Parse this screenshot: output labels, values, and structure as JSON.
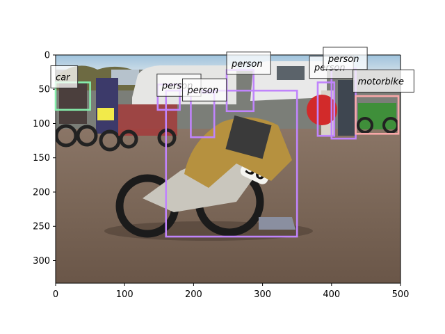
{
  "figure": {
    "x_ticks": [
      "0",
      "100",
      "200",
      "300",
      "400",
      "500"
    ],
    "y_ticks": [
      "0",
      "50",
      "100",
      "150",
      "200",
      "250",
      "300"
    ]
  },
  "image": {
    "description_icon": "photo-dirt-track-motorcycle-race",
    "extent": {
      "x": [
        0,
        500
      ],
      "y": [
        0,
        333
      ]
    }
  },
  "detections": [
    {
      "id": "det-person-main",
      "label": "person",
      "color": "#c084fc",
      "x1": 160,
      "y1": 52,
      "x2": 350,
      "y2": 265
    },
    {
      "id": "det-person-center-top",
      "label": "person",
      "color": "#c084fc",
      "x1": 248,
      "y1": 22,
      "x2": 287,
      "y2": 82
    },
    {
      "id": "det-person-left-mid",
      "label": "person",
      "color": "#c084fc",
      "x1": 196,
      "y1": 55,
      "x2": 230,
      "y2": 120
    },
    {
      "id": "det-person-right-a",
      "label": "person",
      "color": "#c084fc",
      "x1": 380,
      "y1": 40,
      "x2": 404,
      "y2": 118
    },
    {
      "id": "det-person-right-b",
      "label": "person",
      "color": "#c084fc",
      "x1": 400,
      "y1": 20,
      "x2": 435,
      "y2": 122
    },
    {
      "id": "det-person-left",
      "label": "person",
      "color": "#c084fc",
      "x1": 148,
      "y1": 43,
      "x2": 180,
      "y2": 80
    },
    {
      "id": "det-motorbike",
      "label": "motorbike",
      "color": "#f9a8a8",
      "x1": 435,
      "y1": 60,
      "x2": 497,
      "y2": 115
    },
    {
      "id": "det-car",
      "label": "car",
      "color": "#86efac",
      "x1": 0,
      "y1": 40,
      "x2": 50,
      "y2": 80
    }
  ],
  "labels": [
    {
      "text": "person",
      "x": 248,
      "y": 14
    },
    {
      "text": "person",
      "x": 147,
      "y": 46
    },
    {
      "text": "person",
      "x": 184,
      "y": 53
    },
    {
      "text": "person",
      "x": 368,
      "y": 20
    },
    {
      "text": "person",
      "x": 388,
      "y": 7
    },
    {
      "text": "motorbike",
      "x": 431,
      "y": 40
    },
    {
      "text": "car",
      "x": -7,
      "y": 34
    }
  ]
}
